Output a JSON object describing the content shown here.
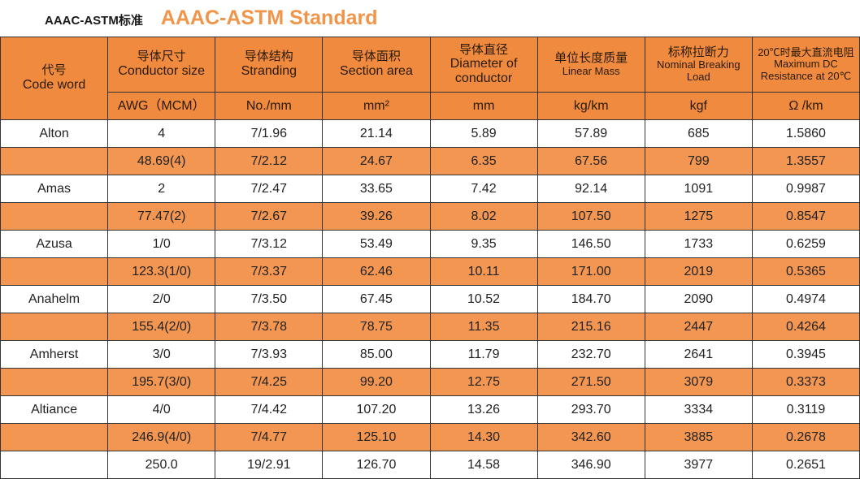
{
  "title": {
    "cn": "AAAC-ASTM标准",
    "en": "AAAC-ASTM Standard"
  },
  "headers": [
    {
      "cn": "代号",
      "en": "Code word",
      "unit": ""
    },
    {
      "cn": "导体尺寸",
      "en": "Conductor size",
      "unit": "AWG（MCM）"
    },
    {
      "cn": "导体结构",
      "en": "Stranding",
      "unit": "No./mm"
    },
    {
      "cn": "导体面积",
      "en": "Section area",
      "unit": "mm²"
    },
    {
      "cn": "导体直径",
      "en": "Diameter of conductor",
      "unit": "mm"
    },
    {
      "cn": "单位长度质量",
      "en": "Linear Mass",
      "unit": "kg/km"
    },
    {
      "cn": "标称拉断力",
      "en": "Nominal Breaking Load",
      "unit": "kgf"
    },
    {
      "cn": "20℃时最大直流电阻",
      "en": "Maximum DC Resistance at 20℃",
      "unit": "Ω /km"
    }
  ],
  "rows": [
    [
      "Alton",
      "4",
      "7/1.96",
      "21.14",
      "5.89",
      "57.89",
      "685",
      "1.5860"
    ],
    [
      "",
      "48.69(4)",
      "7/2.12",
      "24.67",
      "6.35",
      "67.56",
      "799",
      "1.3557"
    ],
    [
      "Amas",
      "2",
      "7/2.47",
      "33.65",
      "7.42",
      "92.14",
      "1091",
      "0.9987"
    ],
    [
      "",
      "77.47(2)",
      "7/2.67",
      "39.26",
      "8.02",
      "107.50",
      "1275",
      "0.8547"
    ],
    [
      "Azusa",
      "1/0",
      "7/3.12",
      "53.49",
      "9.35",
      "146.50",
      "1733",
      "0.6259"
    ],
    [
      "",
      "123.3(1/0)",
      "7/3.37",
      "62.46",
      "10.11",
      "171.00",
      "2019",
      "0.5365"
    ],
    [
      "Anahelm",
      "2/0",
      "7/3.50",
      "67.45",
      "10.52",
      "184.70",
      "2090",
      "0.4974"
    ],
    [
      "",
      "155.4(2/0)",
      "7/3.78",
      "78.75",
      "11.35",
      "215.16",
      "2447",
      "0.4264"
    ],
    [
      "Amherst",
      "3/0",
      "7/3.93",
      "85.00",
      "11.79",
      "232.70",
      "2641",
      "0.3945"
    ],
    [
      "",
      "195.7(3/0)",
      "7/4.25",
      "99.20",
      "12.75",
      "271.50",
      "3079",
      "0.3373"
    ],
    [
      "Altiance",
      "4/0",
      "7/4.42",
      "107.20",
      "13.26",
      "293.70",
      "3334",
      "0.3119"
    ],
    [
      "",
      "246.9(4/0)",
      "7/4.77",
      "125.10",
      "14.30",
      "342.60",
      "3885",
      "0.2678"
    ],
    [
      "",
      "250.0",
      "19/2.91",
      "126.70",
      "14.58",
      "346.90",
      "3977",
      "0.2651"
    ]
  ]
}
